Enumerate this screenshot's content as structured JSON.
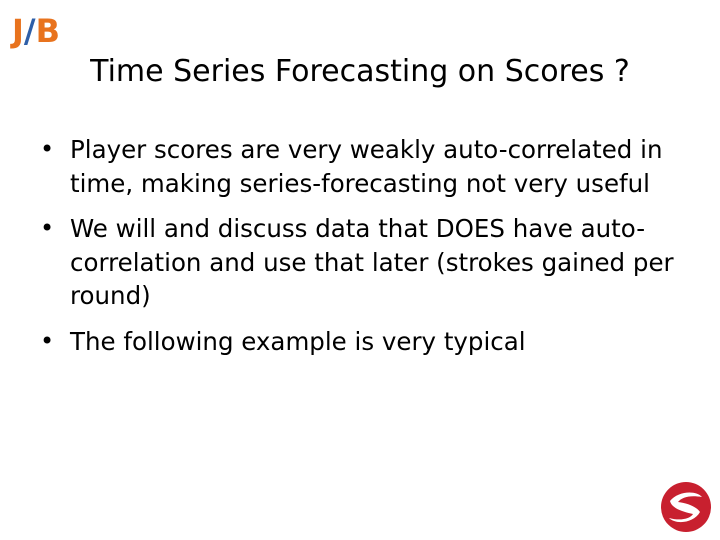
{
  "logo": {
    "j": "J",
    "slash": "/",
    "b": "B"
  },
  "title": "Time Series Forecasting on Scores ?",
  "bullets": [
    {
      "text": "Player scores are very weakly auto-correlated in time, making series-forecasting not very useful"
    },
    {
      "text": "We will and discuss data that DOES have auto-correlation and use that later (strokes gained per round)"
    },
    {
      "text": "The following example is very typical"
    }
  ],
  "colors": {
    "logo_orange": "#E8731E",
    "logo_blue": "#2E5FA8",
    "corner_logo_red": "#C8202F"
  },
  "icons": {
    "corner_logo": "red-circle-s-logo-icon"
  }
}
